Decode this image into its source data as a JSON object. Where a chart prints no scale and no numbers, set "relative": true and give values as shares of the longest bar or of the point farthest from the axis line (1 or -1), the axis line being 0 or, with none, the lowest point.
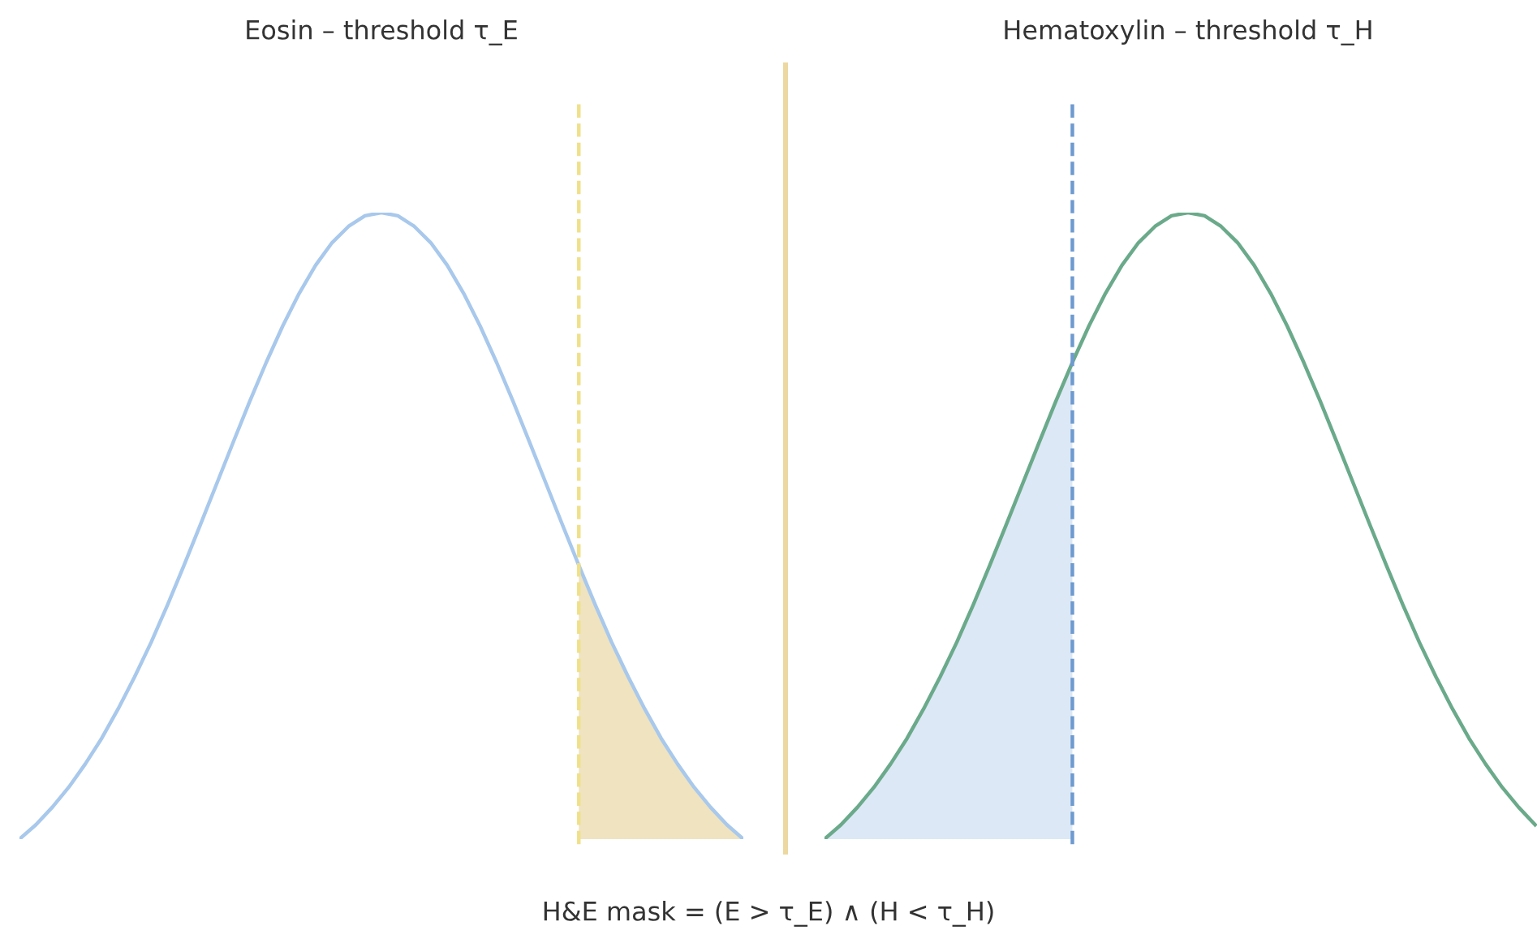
{
  "chart_data": [
    {
      "type": "line",
      "title": "Eosin – threshold τ_E",
      "relative": true,
      "categories": [
        null,
        null,
        null,
        null,
        null,
        null,
        null,
        null,
        null,
        null,
        null,
        null,
        null,
        null,
        null,
        null,
        null,
        null,
        null,
        null,
        null,
        null,
        null,
        null,
        null,
        null,
        null,
        null,
        null,
        null,
        null,
        null,
        null,
        null,
        null,
        null,
        null,
        null,
        null,
        null,
        null,
        null,
        null,
        null,
        null
      ],
      "series": [
        {
          "color": "#a8c8ec",
          "values": [
            0,
            0.023,
            0.051,
            0.083,
            0.12,
            0.161,
            0.208,
            0.259,
            0.314,
            0.374,
            0.437,
            0.502,
            0.568,
            0.634,
            0.699,
            0.761,
            0.819,
            0.871,
            0.916,
            0.952,
            0.978,
            0.995,
            1.0,
            0.995,
            0.978,
            0.952,
            0.916,
            0.871,
            0.819,
            0.761,
            0.699,
            0.634,
            0.568,
            0.502,
            0.437,
            0.374,
            0.314,
            0.259,
            0.208,
            0.161,
            0.12,
            0.083,
            0.051,
            0.023,
            0
          ]
        },
        {
          "type": "area",
          "color": "#efe3c0",
          "values": [
            null,
            null,
            null,
            null,
            null,
            null,
            null,
            null,
            null,
            null,
            null,
            null,
            null,
            null,
            null,
            null,
            null,
            null,
            null,
            null,
            null,
            null,
            null,
            null,
            null,
            null,
            null,
            null,
            null,
            null,
            null,
            null,
            null,
            null,
            0.437,
            0.374,
            0.314,
            0.259,
            0.208,
            0.161,
            0.12,
            0.083,
            0.051,
            0.023,
            0
          ]
        }
      ],
      "ref_lines": [
        {
          "axis": "x",
          "color": "#f0e08a",
          "line_style": "dashed"
        }
      ],
      "annotations": [
        "H&E mask = (E > τ_E) ∧ (H < τ_H)"
      ]
    },
    {
      "type": "line",
      "title": "Hematoxylin – threshold τ_H",
      "relative": true,
      "categories": [
        null,
        null,
        null,
        null,
        null,
        null,
        null,
        null,
        null,
        null,
        null,
        null,
        null,
        null,
        null,
        null,
        null,
        null,
        null,
        null,
        null,
        null,
        null,
        null,
        null,
        null,
        null,
        null,
        null,
        null,
        null,
        null,
        null,
        null,
        null,
        null,
        null,
        null,
        null,
        null,
        null,
        null,
        null,
        null,
        null
      ],
      "series": [
        {
          "type": "area",
          "color": "#dce8f5",
          "values": [
            0,
            0.023,
            0.051,
            0.083,
            0.12,
            0.161,
            0.208,
            0.259,
            0.314,
            0.374,
            0.437,
            0.502,
            0.568,
            0.634,
            0.699,
            0.761,
            null,
            null,
            null,
            null,
            null,
            null,
            null,
            null,
            null,
            null,
            null,
            null,
            null,
            null,
            null,
            null,
            null,
            null,
            null,
            null,
            null,
            null,
            null,
            null,
            null,
            null,
            null,
            null,
            null
          ]
        },
        {
          "color": "#6aaa8a",
          "values": [
            0,
            0.023,
            0.051,
            0.083,
            0.12,
            0.161,
            0.208,
            0.259,
            0.314,
            0.374,
            0.437,
            0.502,
            0.568,
            0.634,
            0.699,
            0.761,
            0.819,
            0.871,
            0.916,
            0.952,
            0.978,
            0.995,
            1.0,
            0.995,
            0.978,
            0.952,
            0.916,
            0.871,
            0.819,
            0.761,
            0.699,
            0.634,
            0.568,
            0.502,
            0.437,
            0.374,
            0.314,
            0.259,
            0.208,
            0.161,
            0.12,
            0.083,
            0.051,
            0.023,
            null
          ]
        }
      ],
      "ref_lines": [
        {
          "axis": "x",
          "color": "#6e9ad0",
          "line_style": "dashed"
        }
      ]
    }
  ]
}
